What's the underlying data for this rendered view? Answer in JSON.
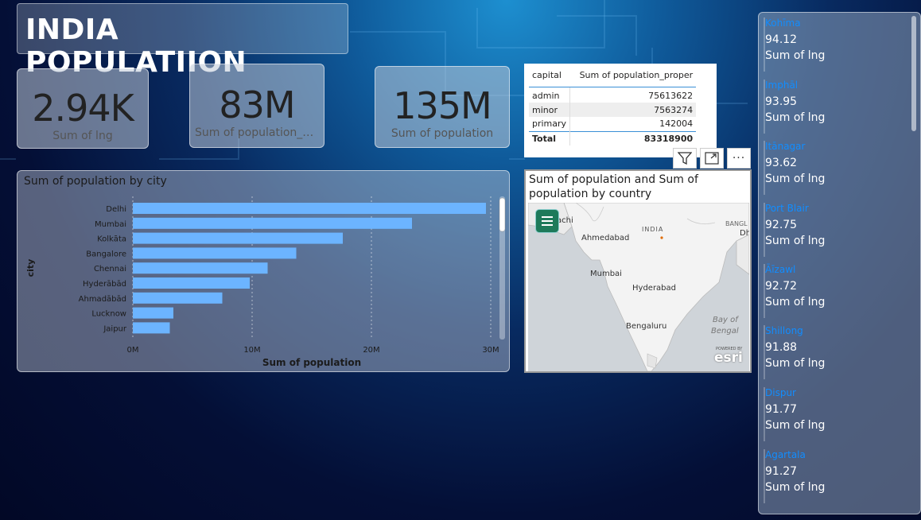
{
  "title": "INDIA POPULATIION",
  "cards": [
    {
      "value": "2.94K",
      "label": "Sum of lng"
    },
    {
      "value": "83M",
      "label": "Sum of population_pr..."
    },
    {
      "value": "135M",
      "label": "Sum of population"
    }
  ],
  "table": {
    "headers": [
      "capital",
      "Sum of population_proper"
    ],
    "rows": [
      {
        "capital": "admin",
        "value": "75613622"
      },
      {
        "capital": "minor",
        "value": "7563274"
      },
      {
        "capital": "primary",
        "value": "142004"
      }
    ],
    "total_label": "Total",
    "total_value": "83318900"
  },
  "icons": {
    "filter": "filter-icon",
    "focus": "focus-mode-icon",
    "more": "more-options-icon",
    "more_glyph": "···"
  },
  "bar_panel_title": "Sum of population by city",
  "chart_data": {
    "type": "bar",
    "orientation": "horizontal",
    "title": "Sum of population by city",
    "xlabel": "Sum of population",
    "ylabel": "city",
    "categories": [
      "Delhi",
      "Mumbai",
      "Kolkāta",
      "Bangalore",
      "Chennai",
      "Hyderābād",
      "Ahmadābād",
      "Lucknow",
      "Jaipur"
    ],
    "values": [
      29600000,
      23400000,
      17600000,
      13700000,
      11300000,
      9800000,
      7500000,
      3400000,
      3100000
    ],
    "xlim": [
      0,
      30000000
    ],
    "xticks": [
      "0M",
      "10M",
      "20M",
      "30M"
    ],
    "bar_color": "#6cb4ff",
    "grid": true
  },
  "map": {
    "title": "Sum of population and Sum of population by country",
    "labels": {
      "karachi": "achi",
      "ahmedabad": "Ahmedabad",
      "india": "INDIA",
      "mumbai": "Mumbai",
      "hyderabad": "Hyderabad",
      "bengaluru": "Bengaluru",
      "bay": "Bay of",
      "bengal": "Bengal",
      "bangla": "BANGL",
      "dh": "Dh",
      "esri_small": "POWERED BY",
      "esri": "esri"
    }
  },
  "side_list": [
    {
      "city": "Kohīma",
      "value": "94.12",
      "label": "Sum of lng"
    },
    {
      "city": "Imphāl",
      "value": "93.95",
      "label": "Sum of lng"
    },
    {
      "city": "Itānagar",
      "value": "93.62",
      "label": "Sum of lng"
    },
    {
      "city": "Port Blair",
      "value": "92.75",
      "label": "Sum of lng"
    },
    {
      "city": "Āīzawl",
      "value": "92.72",
      "label": "Sum of lng"
    },
    {
      "city": "Shillong",
      "value": "91.88",
      "label": "Sum of lng"
    },
    {
      "city": "Dispur",
      "value": "91.77",
      "label": "Sum of lng"
    },
    {
      "city": "Agartala",
      "value": "91.27",
      "label": "Sum of lng"
    }
  ]
}
